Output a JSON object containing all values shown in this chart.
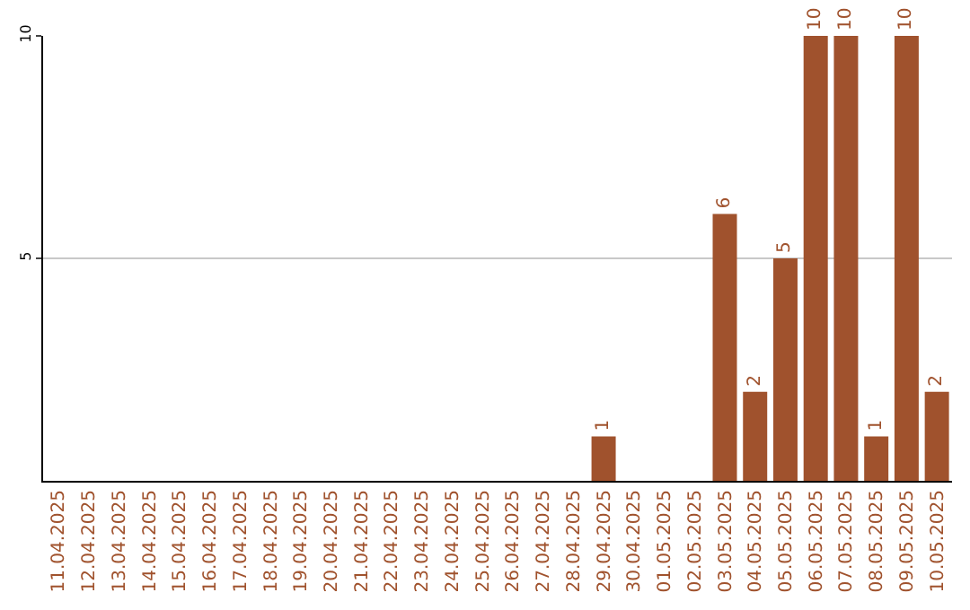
{
  "chart_data": {
    "type": "bar",
    "categories": [
      "11.04.2025",
      "12.04.2025",
      "13.04.2025",
      "14.04.2025",
      "15.04.2025",
      "16.04.2025",
      "17.04.2025",
      "18.04.2025",
      "19.04.2025",
      "20.04.2025",
      "21.04.2025",
      "22.04.2025",
      "23.04.2025",
      "24.04.2025",
      "25.04.2025",
      "26.04.2025",
      "27.04.2025",
      "28.04.2025",
      "29.04.2025",
      "30.04.2025",
      "01.05.2025",
      "02.05.2025",
      "03.05.2025",
      "04.05.2025",
      "05.05.2025",
      "06.05.2025",
      "07.05.2025",
      "08.05.2025",
      "09.05.2025",
      "10.05.2025"
    ],
    "values": [
      0,
      0,
      0,
      0,
      0,
      0,
      0,
      0,
      0,
      0,
      0,
      0,
      0,
      0,
      0,
      0,
      0,
      0,
      1,
      0,
      0,
      0,
      6,
      2,
      5,
      10,
      10,
      1,
      10,
      2
    ],
    "value_labels": [
      null,
      null,
      null,
      null,
      null,
      null,
      null,
      null,
      null,
      null,
      null,
      null,
      null,
      null,
      null,
      null,
      null,
      null,
      "1",
      null,
      null,
      null,
      "6",
      "2",
      "5",
      "10",
      "10",
      "1",
      "10",
      "2"
    ],
    "color": "#a0522d",
    "ylim": [
      0,
      10
    ],
    "yticks": [
      5,
      10
    ],
    "grid": "y",
    "legend": false
  }
}
